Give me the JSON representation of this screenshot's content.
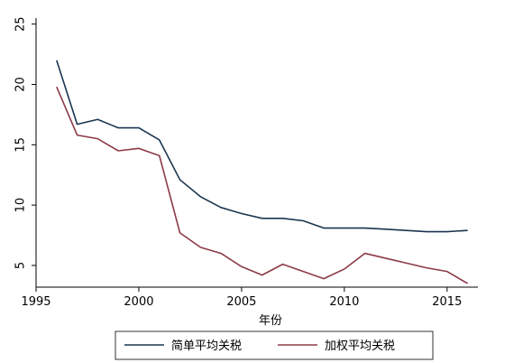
{
  "chart_data": {
    "type": "line",
    "title": "",
    "xlabel": "年份",
    "ylabel": "",
    "xlim": [
      1995,
      2016.5
    ],
    "ylim": [
      3.2,
      25.5
    ],
    "xticks": [
      1995,
      2000,
      2005,
      2010,
      2015
    ],
    "yticks": [
      5,
      10,
      15,
      20,
      25
    ],
    "grid": false,
    "legend_position": "bottom",
    "x": [
      1996,
      1997,
      1998,
      1999,
      2000,
      2001,
      2002,
      2003,
      2004,
      2005,
      2006,
      2007,
      2008,
      2009,
      2010,
      2011,
      2012,
      2013,
      2014,
      2015,
      2016
    ],
    "series": [
      {
        "name": "简单平均关税",
        "color": "#1a3550",
        "values": [
          22.0,
          16.7,
          17.1,
          16.4,
          16.4,
          15.4,
          12.1,
          10.7,
          9.8,
          9.3,
          8.9,
          8.9,
          8.7,
          8.1,
          8.1,
          8.1,
          8.0,
          7.9,
          7.8,
          7.8,
          7.9
        ]
      },
      {
        "name": "加权平均关税",
        "color": "#8b3a46",
        "values": [
          19.8,
          15.8,
          15.5,
          14.5,
          14.7,
          14.1,
          7.7,
          6.5,
          6.0,
          4.9,
          4.2,
          5.1,
          4.5,
          3.9,
          4.7,
          6.0,
          5.6,
          5.2,
          4.8,
          4.5,
          3.5
        ]
      }
    ]
  }
}
